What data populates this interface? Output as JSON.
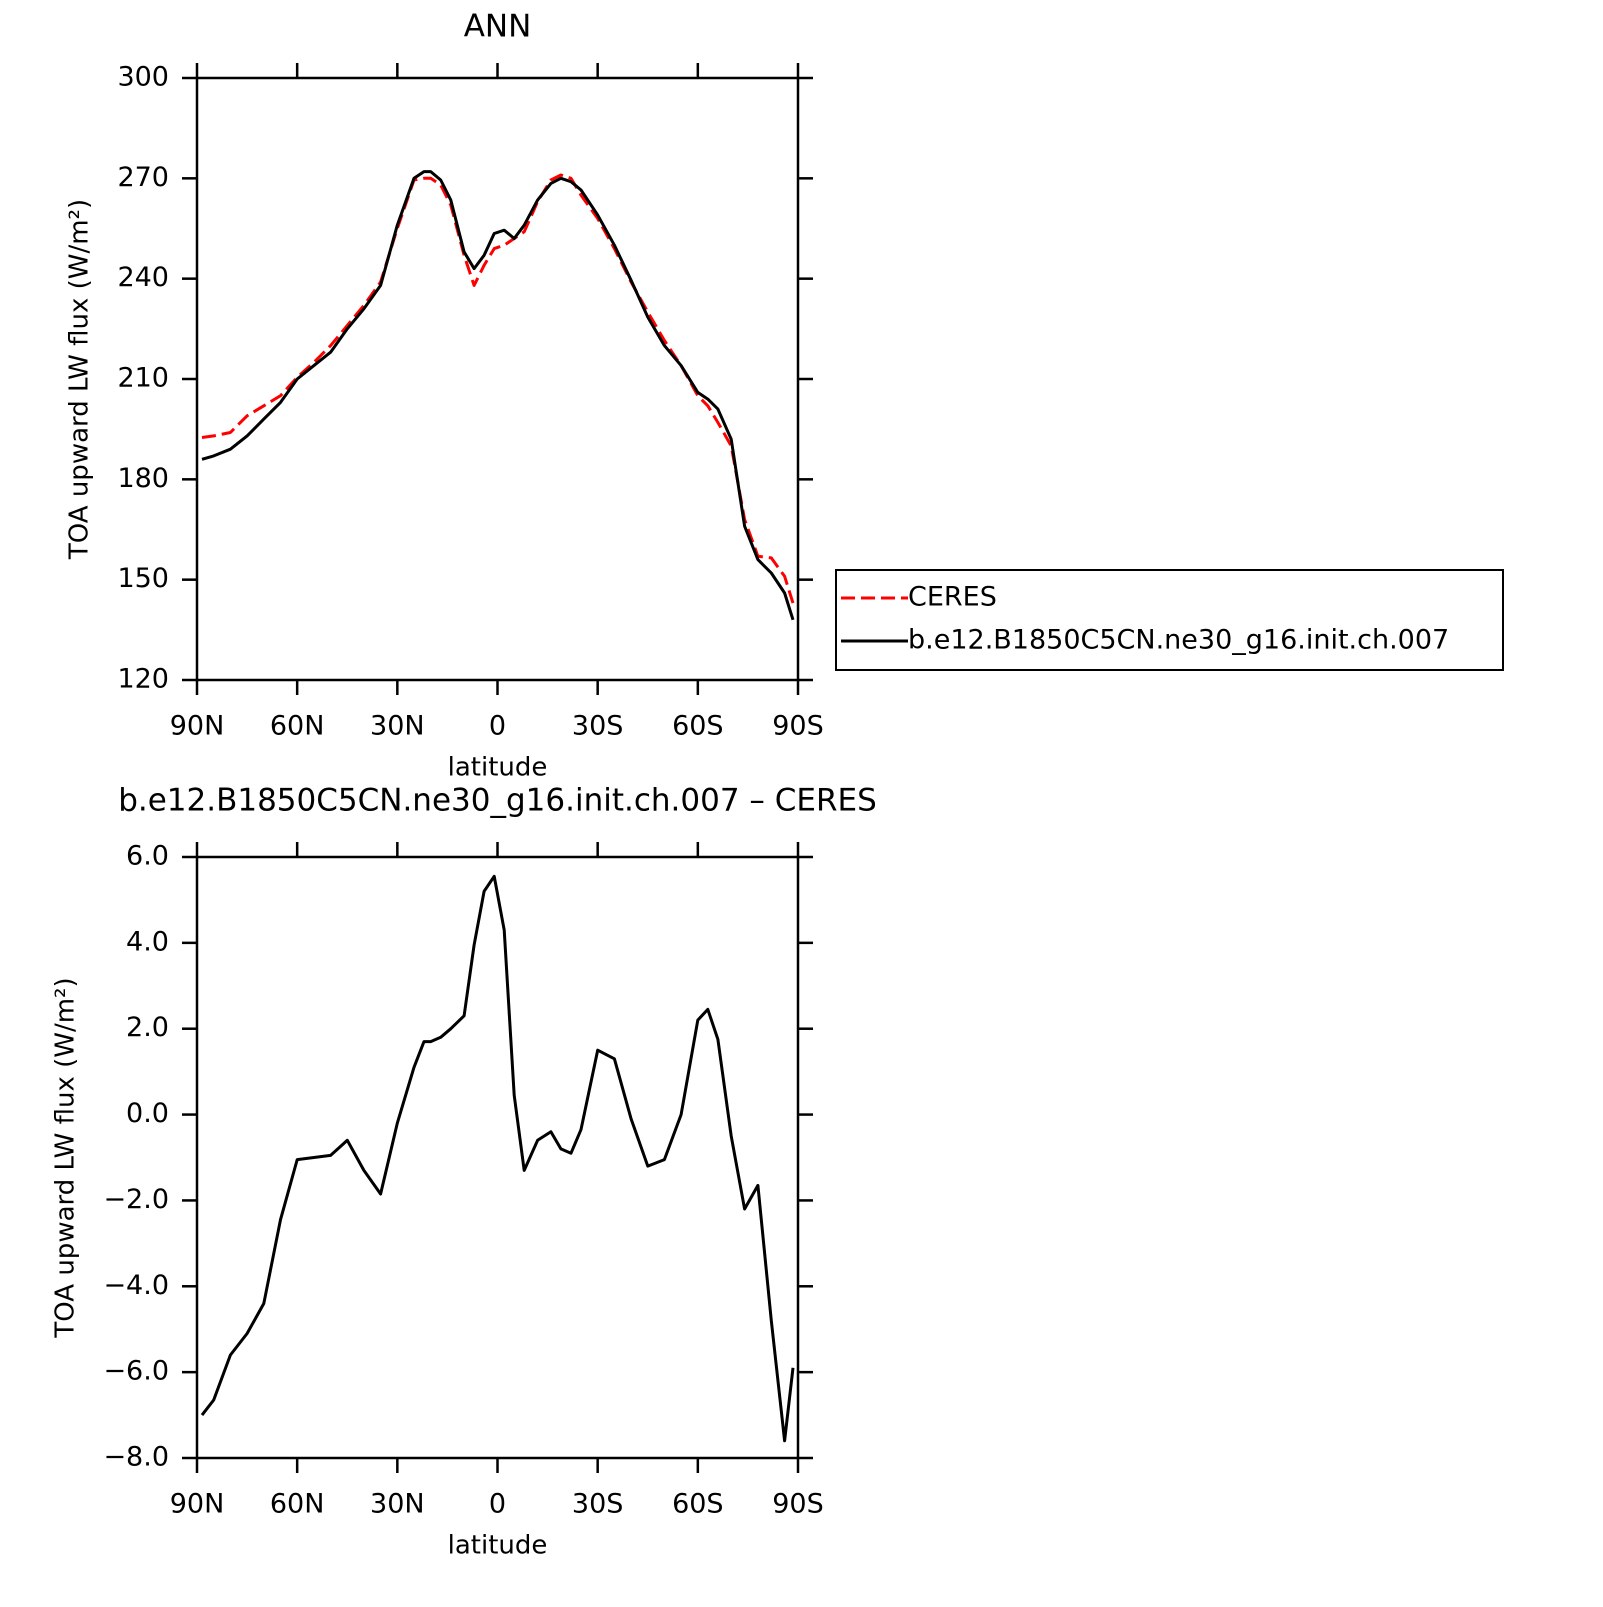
{
  "chart_data": [
    {
      "type": "line",
      "title": "ANN",
      "x_label": "latitude",
      "y_label": "TOA upward LW flux (W/m²)",
      "x": [
        88.5,
        85,
        80,
        75,
        70,
        65,
        60,
        55,
        50,
        45,
        40,
        35,
        30,
        25,
        22,
        20,
        17,
        14,
        10,
        7,
        4,
        1,
        -2,
        -5,
        -8,
        -12,
        -16,
        -19,
        -22,
        -25,
        -30,
        -35,
        -40,
        -45,
        -50,
        -55,
        -60,
        -63,
        -66,
        -70,
        -74,
        -78,
        -82,
        -86,
        -88.5
      ],
      "series": [
        {
          "name": "CERES",
          "color": "#ff0000",
          "linestyle": "dashed",
          "values": [
            192.5,
            193,
            194,
            199,
            202,
            205,
            210.5,
            215,
            220,
            226,
            232,
            239,
            255,
            269.5,
            270,
            270,
            268,
            262,
            247,
            238,
            244,
            249,
            250,
            252,
            254,
            263,
            269.5,
            271,
            270,
            265,
            258,
            249,
            239,
            230,
            221.5,
            214,
            205,
            202,
            197,
            190,
            168,
            157,
            156.5,
            151,
            143
          ]
        },
        {
          "name": "b.e12.B1850C5CN.ne30_g16.init.ch.007",
          "color": "#000000",
          "linestyle": "solid",
          "values": [
            186,
            187,
            189,
            193,
            198,
            203,
            210,
            214,
            218,
            225,
            231,
            238,
            256,
            270,
            272,
            272,
            269.5,
            263.5,
            248,
            243,
            247,
            253.5,
            254.5,
            252,
            256,
            263.5,
            268.5,
            270,
            269,
            266.5,
            259,
            250,
            239.5,
            228.5,
            220,
            214,
            206,
            204,
            201,
            192,
            166,
            156,
            152,
            146,
            138
          ]
        }
      ],
      "xlim": [
        90,
        -90
      ],
      "xticks": [
        {
          "value": 90,
          "label": "90N"
        },
        {
          "value": 60,
          "label": "60N"
        },
        {
          "value": 30,
          "label": "30N"
        },
        0,
        {
          "value": -30,
          "label": "30S"
        },
        {
          "value": -60,
          "label": "60S"
        },
        {
          "value": -90,
          "label": "90S"
        }
      ],
      "ylim": [
        120,
        300
      ],
      "yticks": [
        120,
        150,
        180,
        210,
        240,
        270,
        300
      ],
      "legend": "right"
    },
    {
      "type": "line",
      "title": "b.e12.B1850C5CN.ne30_g16.init.ch.007 – CERES",
      "x_label": "latitude",
      "y_label": "TOA upward LW flux (W/m²)",
      "x": [
        88.5,
        85,
        80,
        75,
        70,
        65,
        60,
        55,
        50,
        45,
        40,
        35,
        30,
        25,
        22,
        20,
        17,
        14,
        10,
        7,
        4,
        1,
        -2,
        -5,
        -8,
        -12,
        -16,
        -19,
        -22,
        -25,
        -30,
        -35,
        -40,
        -45,
        -50,
        -55,
        -60,
        -63,
        -66,
        -70,
        -74,
        -78,
        -82,
        -86,
        -88.5
      ],
      "color": "#000000",
      "values": [
        -7.0,
        -6.65,
        -5.6,
        -5.1,
        -4.4,
        -2.45,
        -1.05,
        -1.0,
        -0.95,
        -0.6,
        -1.3,
        -1.85,
        -0.2,
        1.1,
        1.7,
        1.7,
        1.8,
        2.0,
        2.3,
        3.95,
        5.2,
        5.55,
        4.3,
        0.45,
        -1.3,
        -0.6,
        -0.4,
        -0.8,
        -0.9,
        -0.35,
        1.5,
        1.3,
        -0.1,
        -1.2,
        -1.05,
        0,
        2.2,
        2.45,
        1.75,
        -0.5,
        -2.2,
        -1.65,
        -4.8,
        -7.6,
        -5.9
      ],
      "xlim": [
        90,
        -90
      ],
      "xticks": [
        {
          "value": 90,
          "label": "90N"
        },
        {
          "value": 60,
          "label": "60N"
        },
        {
          "value": 30,
          "label": "30N"
        },
        0,
        {
          "value": -30,
          "label": "30S"
        },
        {
          "value": -60,
          "label": "60S"
        },
        {
          "value": -90,
          "label": "90S"
        }
      ],
      "ylim": [
        -8,
        6
      ],
      "yticks": [
        {
          "value": -8,
          "label": "−8.0"
        },
        {
          "value": -6,
          "label": "−6.0"
        },
        {
          "value": -4,
          "label": "−4.0"
        },
        {
          "value": -2,
          "label": "−2.0"
        },
        {
          "value": 0,
          "label": "0.0"
        },
        {
          "value": 2,
          "label": "2.0"
        },
        {
          "value": 4,
          "label": "4.0"
        },
        {
          "value": 6,
          "label": "6.0"
        }
      ]
    }
  ]
}
